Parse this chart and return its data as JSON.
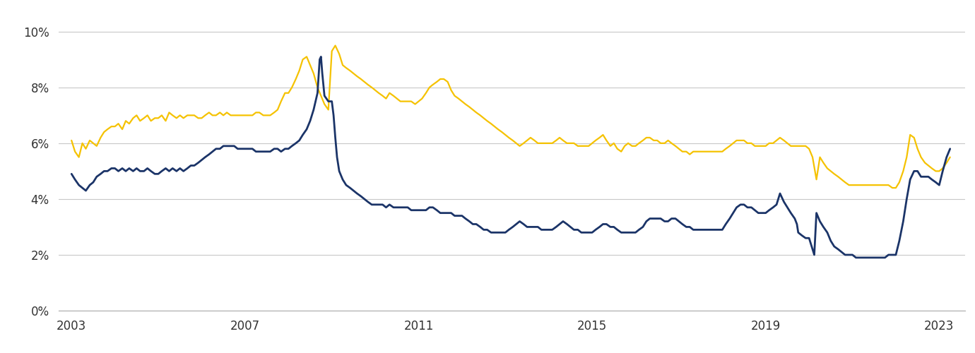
{
  "background_color": "#ffffff",
  "grid_color": "#c8c8c8",
  "line_color_gold": "#F5C200",
  "line_color_navy": "#1B3468",
  "ylim": [
    0,
    10.5
  ],
  "yticks": [
    0,
    2,
    4,
    6,
    8,
    10
  ],
  "xlim_start": 2002.7,
  "xlim_end": 2023.6,
  "xticks": [
    2003,
    2007,
    2011,
    2015,
    2019,
    2023
  ],
  "gold_dates": [
    2003.0,
    2003.08,
    2003.17,
    2003.25,
    2003.33,
    2003.42,
    2003.5,
    2003.58,
    2003.67,
    2003.75,
    2003.83,
    2003.92,
    2004.0,
    2004.08,
    2004.17,
    2004.25,
    2004.33,
    2004.42,
    2004.5,
    2004.58,
    2004.67,
    2004.75,
    2004.83,
    2004.92,
    2005.0,
    2005.08,
    2005.17,
    2005.25,
    2005.33,
    2005.42,
    2005.5,
    2005.58,
    2005.67,
    2005.75,
    2005.83,
    2005.92,
    2006.0,
    2006.08,
    2006.17,
    2006.25,
    2006.33,
    2006.42,
    2006.5,
    2006.58,
    2006.67,
    2006.75,
    2006.83,
    2006.92,
    2007.0,
    2007.08,
    2007.17,
    2007.25,
    2007.33,
    2007.42,
    2007.5,
    2007.58,
    2007.67,
    2007.75,
    2007.83,
    2007.92,
    2008.0,
    2008.08,
    2008.17,
    2008.25,
    2008.33,
    2008.42,
    2008.5,
    2008.58,
    2008.67,
    2008.75,
    2008.83,
    2008.92,
    2009.0,
    2009.08,
    2009.17,
    2009.25,
    2009.33,
    2009.42,
    2009.5,
    2009.58,
    2009.67,
    2009.75,
    2009.83,
    2009.92,
    2010.0,
    2010.08,
    2010.17,
    2010.25,
    2010.33,
    2010.42,
    2010.5,
    2010.58,
    2010.67,
    2010.75,
    2010.83,
    2010.92,
    2011.0,
    2011.08,
    2011.17,
    2011.25,
    2011.33,
    2011.42,
    2011.5,
    2011.58,
    2011.67,
    2011.75,
    2011.83,
    2011.92,
    2012.0,
    2012.08,
    2012.17,
    2012.25,
    2012.33,
    2012.42,
    2012.5,
    2012.58,
    2012.67,
    2012.75,
    2012.83,
    2012.92,
    2013.0,
    2013.08,
    2013.17,
    2013.25,
    2013.33,
    2013.42,
    2013.5,
    2013.58,
    2013.67,
    2013.75,
    2013.83,
    2013.92,
    2014.0,
    2014.08,
    2014.17,
    2014.25,
    2014.33,
    2014.42,
    2014.5,
    2014.58,
    2014.67,
    2014.75,
    2014.83,
    2014.92,
    2015.0,
    2015.08,
    2015.17,
    2015.25,
    2015.33,
    2015.42,
    2015.5,
    2015.58,
    2015.67,
    2015.75,
    2015.83,
    2015.92,
    2016.0,
    2016.08,
    2016.17,
    2016.25,
    2016.33,
    2016.42,
    2016.5,
    2016.58,
    2016.67,
    2016.75,
    2016.83,
    2016.92,
    2017.0,
    2017.08,
    2017.17,
    2017.25,
    2017.33,
    2017.42,
    2017.5,
    2017.58,
    2017.67,
    2017.75,
    2017.83,
    2017.92,
    2018.0,
    2018.08,
    2018.17,
    2018.25,
    2018.33,
    2018.42,
    2018.5,
    2018.58,
    2018.67,
    2018.75,
    2018.83,
    2018.92,
    2019.0,
    2019.08,
    2019.17,
    2019.25,
    2019.33,
    2019.42,
    2019.5,
    2019.58,
    2019.67,
    2019.75,
    2019.83,
    2019.92,
    2020.0,
    2020.08,
    2020.17,
    2020.25,
    2020.33,
    2020.42,
    2020.5,
    2020.58,
    2020.67,
    2020.75,
    2020.83,
    2020.92,
    2021.0,
    2021.08,
    2021.17,
    2021.25,
    2021.33,
    2021.42,
    2021.5,
    2021.58,
    2021.67,
    2021.75,
    2021.83,
    2021.92,
    2022.0,
    2022.08,
    2022.17,
    2022.25,
    2022.33,
    2022.42,
    2022.5,
    2022.58,
    2022.67,
    2022.75,
    2022.83,
    2022.92,
    2023.0,
    2023.08,
    2023.17,
    2023.25
  ],
  "gold_values": [
    6.1,
    5.7,
    5.5,
    6.0,
    5.8,
    6.1,
    6.0,
    5.9,
    6.2,
    6.4,
    6.5,
    6.6,
    6.6,
    6.7,
    6.5,
    6.8,
    6.7,
    6.9,
    7.0,
    6.8,
    6.9,
    7.0,
    6.8,
    6.9,
    6.9,
    7.0,
    6.8,
    7.1,
    7.0,
    6.9,
    7.0,
    6.9,
    7.0,
    7.0,
    7.0,
    6.9,
    6.9,
    7.0,
    7.1,
    7.0,
    7.0,
    7.1,
    7.0,
    7.1,
    7.0,
    7.0,
    7.0,
    7.0,
    7.0,
    7.0,
    7.0,
    7.1,
    7.1,
    7.0,
    7.0,
    7.0,
    7.1,
    7.2,
    7.5,
    7.8,
    7.8,
    8.0,
    8.3,
    8.6,
    9.0,
    9.1,
    8.8,
    8.5,
    8.0,
    7.7,
    7.4,
    7.2,
    9.3,
    9.5,
    9.2,
    8.8,
    8.7,
    8.6,
    8.5,
    8.4,
    8.3,
    8.2,
    8.1,
    8.0,
    7.9,
    7.8,
    7.7,
    7.6,
    7.8,
    7.7,
    7.6,
    7.5,
    7.5,
    7.5,
    7.5,
    7.4,
    7.5,
    7.6,
    7.8,
    8.0,
    8.1,
    8.2,
    8.3,
    8.3,
    8.2,
    7.9,
    7.7,
    7.6,
    7.5,
    7.4,
    7.3,
    7.2,
    7.1,
    7.0,
    6.9,
    6.8,
    6.7,
    6.6,
    6.5,
    6.4,
    6.3,
    6.2,
    6.1,
    6.0,
    5.9,
    6.0,
    6.1,
    6.2,
    6.1,
    6.0,
    6.0,
    6.0,
    6.0,
    6.0,
    6.1,
    6.2,
    6.1,
    6.0,
    6.0,
    6.0,
    5.9,
    5.9,
    5.9,
    5.9,
    6.0,
    6.1,
    6.2,
    6.3,
    6.1,
    5.9,
    6.0,
    5.8,
    5.7,
    5.9,
    6.0,
    5.9,
    5.9,
    6.0,
    6.1,
    6.2,
    6.2,
    6.1,
    6.1,
    6.0,
    6.0,
    6.1,
    6.0,
    5.9,
    5.8,
    5.7,
    5.7,
    5.6,
    5.7,
    5.7,
    5.7,
    5.7,
    5.7,
    5.7,
    5.7,
    5.7,
    5.7,
    5.8,
    5.9,
    6.0,
    6.1,
    6.1,
    6.1,
    6.0,
    6.0,
    5.9,
    5.9,
    5.9,
    5.9,
    6.0,
    6.0,
    6.1,
    6.2,
    6.1,
    6.0,
    5.9,
    5.9,
    5.9,
    5.9,
    5.9,
    5.8,
    5.5,
    4.7,
    5.5,
    5.3,
    5.1,
    5.0,
    4.9,
    4.8,
    4.7,
    4.6,
    4.5,
    4.5,
    4.5,
    4.5,
    4.5,
    4.5,
    4.5,
    4.5,
    4.5,
    4.5,
    4.5,
    4.5,
    4.4,
    4.4,
    4.6,
    5.0,
    5.5,
    6.3,
    6.2,
    5.8,
    5.5,
    5.3,
    5.2,
    5.1,
    5.0,
    5.0,
    5.1,
    5.3,
    5.5
  ],
  "navy_dates": [
    2003.0,
    2003.08,
    2003.17,
    2003.25,
    2003.33,
    2003.42,
    2003.5,
    2003.58,
    2003.67,
    2003.75,
    2003.83,
    2003.92,
    2004.0,
    2004.08,
    2004.17,
    2004.25,
    2004.33,
    2004.42,
    2004.5,
    2004.58,
    2004.67,
    2004.75,
    2004.83,
    2004.92,
    2005.0,
    2005.08,
    2005.17,
    2005.25,
    2005.33,
    2005.42,
    2005.5,
    2005.58,
    2005.67,
    2005.75,
    2005.83,
    2005.92,
    2006.0,
    2006.08,
    2006.17,
    2006.25,
    2006.33,
    2006.42,
    2006.5,
    2006.58,
    2006.67,
    2006.75,
    2006.83,
    2006.92,
    2007.0,
    2007.08,
    2007.17,
    2007.25,
    2007.33,
    2007.42,
    2007.5,
    2007.58,
    2007.67,
    2007.75,
    2007.83,
    2007.92,
    2008.0,
    2008.08,
    2008.17,
    2008.25,
    2008.33,
    2008.42,
    2008.5,
    2008.58,
    2008.67,
    2008.72,
    2008.75,
    2008.78,
    2008.83,
    2008.92,
    2009.0,
    2009.04,
    2009.08,
    2009.12,
    2009.17,
    2009.25,
    2009.33,
    2009.42,
    2009.5,
    2009.58,
    2009.67,
    2009.75,
    2009.83,
    2009.92,
    2010.0,
    2010.08,
    2010.17,
    2010.25,
    2010.33,
    2010.42,
    2010.5,
    2010.58,
    2010.67,
    2010.75,
    2010.83,
    2010.92,
    2011.0,
    2011.08,
    2011.17,
    2011.25,
    2011.33,
    2011.42,
    2011.5,
    2011.58,
    2011.67,
    2011.75,
    2011.83,
    2011.92,
    2012.0,
    2012.08,
    2012.17,
    2012.25,
    2012.33,
    2012.42,
    2012.5,
    2012.58,
    2012.67,
    2012.75,
    2012.83,
    2012.92,
    2013.0,
    2013.08,
    2013.17,
    2013.25,
    2013.33,
    2013.42,
    2013.5,
    2013.58,
    2013.67,
    2013.75,
    2013.83,
    2013.92,
    2014.0,
    2014.08,
    2014.17,
    2014.25,
    2014.33,
    2014.42,
    2014.5,
    2014.58,
    2014.67,
    2014.75,
    2014.83,
    2014.92,
    2015.0,
    2015.08,
    2015.17,
    2015.25,
    2015.33,
    2015.42,
    2015.5,
    2015.58,
    2015.67,
    2015.75,
    2015.83,
    2015.92,
    2016.0,
    2016.08,
    2016.17,
    2016.25,
    2016.33,
    2016.42,
    2016.5,
    2016.58,
    2016.67,
    2016.75,
    2016.83,
    2016.92,
    2017.0,
    2017.08,
    2017.17,
    2017.25,
    2017.33,
    2017.42,
    2017.5,
    2017.58,
    2017.67,
    2017.75,
    2017.83,
    2017.92,
    2018.0,
    2018.08,
    2018.17,
    2018.25,
    2018.33,
    2018.42,
    2018.5,
    2018.58,
    2018.67,
    2018.75,
    2018.83,
    2018.92,
    2019.0,
    2019.08,
    2019.17,
    2019.25,
    2019.33,
    2019.42,
    2019.5,
    2019.58,
    2019.67,
    2019.72,
    2019.75,
    2019.83,
    2019.92,
    2020.0,
    2020.04,
    2020.08,
    2020.12,
    2020.17,
    2020.25,
    2020.33,
    2020.42,
    2020.5,
    2020.58,
    2020.67,
    2020.75,
    2020.83,
    2020.92,
    2021.0,
    2021.08,
    2021.17,
    2021.25,
    2021.33,
    2021.42,
    2021.5,
    2021.58,
    2021.67,
    2021.75,
    2021.83,
    2021.92,
    2022.0,
    2022.08,
    2022.17,
    2022.25,
    2022.33,
    2022.42,
    2022.5,
    2022.58,
    2022.67,
    2022.75,
    2022.83,
    2022.92,
    2023.0,
    2023.08,
    2023.17,
    2023.25
  ],
  "navy_values": [
    4.9,
    4.7,
    4.5,
    4.4,
    4.3,
    4.5,
    4.6,
    4.8,
    4.9,
    5.0,
    5.0,
    5.1,
    5.1,
    5.0,
    5.1,
    5.0,
    5.1,
    5.0,
    5.1,
    5.0,
    5.0,
    5.1,
    5.0,
    4.9,
    4.9,
    5.0,
    5.1,
    5.0,
    5.1,
    5.0,
    5.1,
    5.0,
    5.1,
    5.2,
    5.2,
    5.3,
    5.4,
    5.5,
    5.6,
    5.7,
    5.8,
    5.8,
    5.9,
    5.9,
    5.9,
    5.9,
    5.8,
    5.8,
    5.8,
    5.8,
    5.8,
    5.7,
    5.7,
    5.7,
    5.7,
    5.7,
    5.8,
    5.8,
    5.7,
    5.8,
    5.8,
    5.9,
    6.0,
    6.1,
    6.3,
    6.5,
    6.8,
    7.2,
    7.8,
    9.0,
    9.1,
    8.5,
    7.7,
    7.5,
    7.5,
    7.0,
    6.2,
    5.5,
    5.0,
    4.7,
    4.5,
    4.4,
    4.3,
    4.2,
    4.1,
    4.0,
    3.9,
    3.8,
    3.8,
    3.8,
    3.8,
    3.7,
    3.8,
    3.7,
    3.7,
    3.7,
    3.7,
    3.7,
    3.6,
    3.6,
    3.6,
    3.6,
    3.6,
    3.7,
    3.7,
    3.6,
    3.5,
    3.5,
    3.5,
    3.5,
    3.4,
    3.4,
    3.4,
    3.3,
    3.2,
    3.1,
    3.1,
    3.0,
    2.9,
    2.9,
    2.8,
    2.8,
    2.8,
    2.8,
    2.8,
    2.9,
    3.0,
    3.1,
    3.2,
    3.1,
    3.0,
    3.0,
    3.0,
    3.0,
    2.9,
    2.9,
    2.9,
    2.9,
    3.0,
    3.1,
    3.2,
    3.1,
    3.0,
    2.9,
    2.9,
    2.8,
    2.8,
    2.8,
    2.8,
    2.9,
    3.0,
    3.1,
    3.1,
    3.0,
    3.0,
    2.9,
    2.8,
    2.8,
    2.8,
    2.8,
    2.8,
    2.9,
    3.0,
    3.2,
    3.3,
    3.3,
    3.3,
    3.3,
    3.2,
    3.2,
    3.3,
    3.3,
    3.2,
    3.1,
    3.0,
    3.0,
    2.9,
    2.9,
    2.9,
    2.9,
    2.9,
    2.9,
    2.9,
    2.9,
    2.9,
    3.1,
    3.3,
    3.5,
    3.7,
    3.8,
    3.8,
    3.7,
    3.7,
    3.6,
    3.5,
    3.5,
    3.5,
    3.6,
    3.7,
    3.8,
    4.2,
    3.9,
    3.7,
    3.5,
    3.3,
    3.1,
    2.8,
    2.7,
    2.6,
    2.6,
    2.4,
    2.2,
    2.0,
    3.5,
    3.2,
    3.0,
    2.8,
    2.5,
    2.3,
    2.2,
    2.1,
    2.0,
    2.0,
    2.0,
    1.9,
    1.9,
    1.9,
    1.9,
    1.9,
    1.9,
    1.9,
    1.9,
    1.9,
    2.0,
    2.0,
    2.0,
    2.5,
    3.2,
    4.0,
    4.7,
    5.0,
    5.0,
    4.8,
    4.8,
    4.8,
    4.7,
    4.6,
    4.5,
    5.0,
    5.5,
    5.8
  ]
}
